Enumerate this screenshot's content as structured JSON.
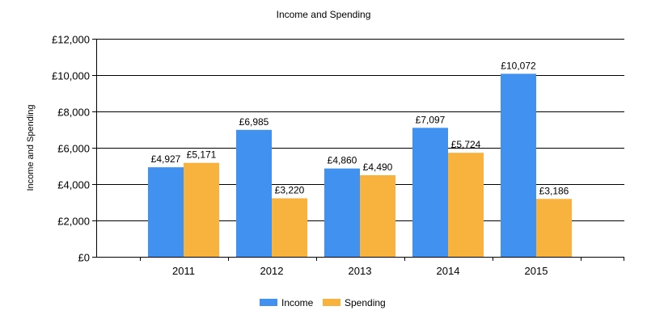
{
  "chart_data": {
    "type": "bar",
    "title": "Income and Spending",
    "xlabel": "",
    "ylabel": "Income and Spending",
    "categories": [
      "2011",
      "2012",
      "2013",
      "2014",
      "2015"
    ],
    "series": [
      {
        "name": "Income",
        "color": "#4191f0",
        "values": [
          4927,
          6985,
          4860,
          7097,
          10072
        ],
        "labels": [
          "£4,927",
          "£6,985",
          "£4,860",
          "£7,097",
          "£10,072"
        ]
      },
      {
        "name": "Spending",
        "color": "#f8b23e",
        "values": [
          5171,
          3220,
          4490,
          5724,
          3186
        ],
        "labels": [
          "£5,171",
          "£3,220",
          "£4,490",
          "£5,724",
          "£3,186"
        ]
      }
    ],
    "ylim": [
      0,
      12000
    ],
    "yticks": [
      0,
      2000,
      4000,
      6000,
      8000,
      10000,
      12000
    ],
    "ytick_labels": [
      "£0",
      "£2,000",
      "£4,000",
      "£6,000",
      "£8,000",
      "£10,000",
      "£12,000"
    ],
    "grid": true,
    "legend_position": "bottom-center"
  }
}
